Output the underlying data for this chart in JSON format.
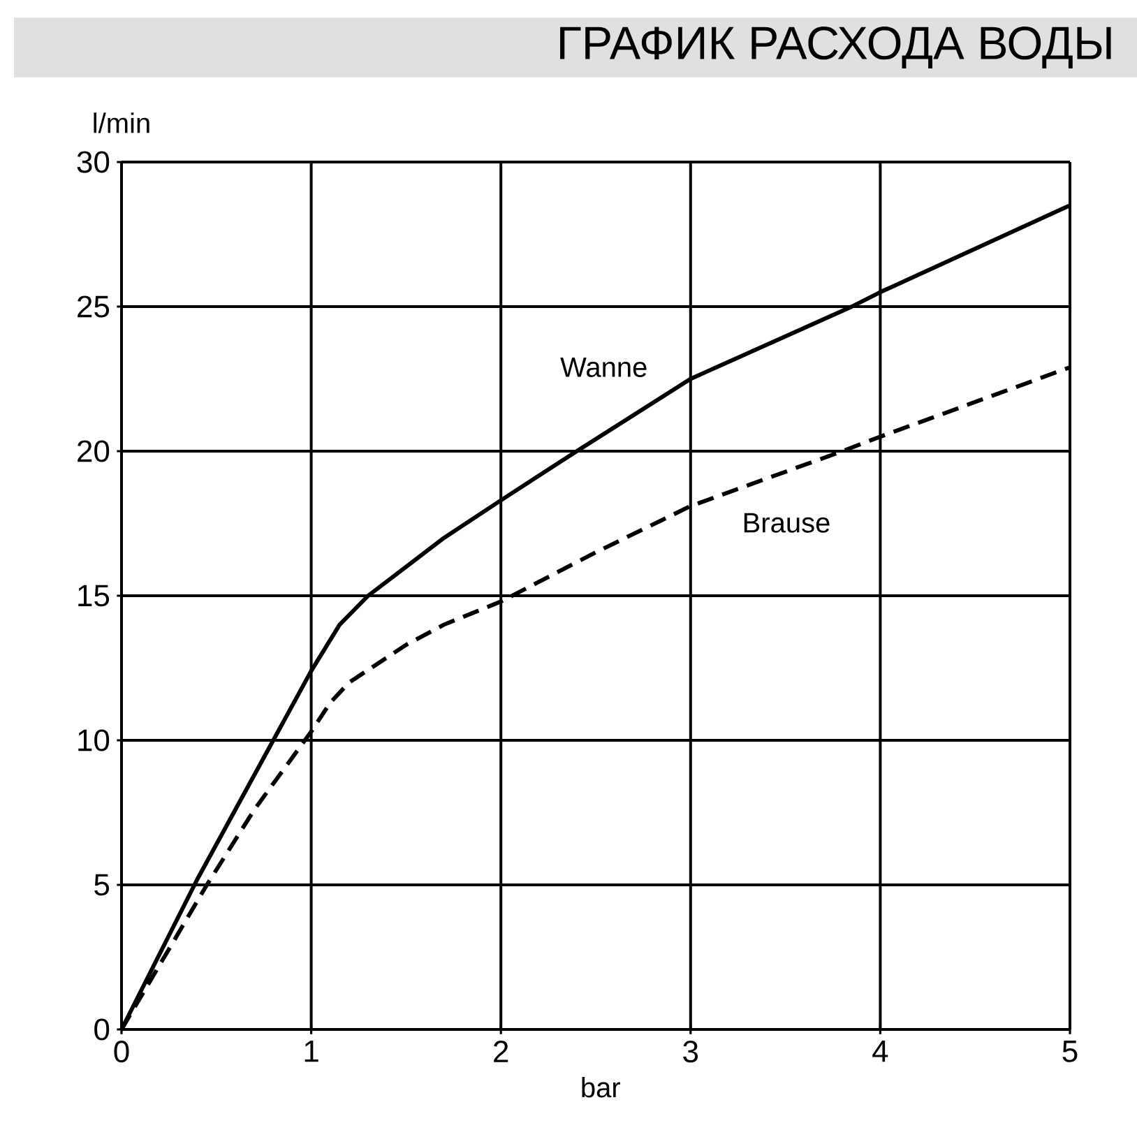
{
  "chart_data": {
    "type": "line",
    "title": "ГРАФИК РАСХОДА ВОДЫ",
    "xlabel": "bar",
    "ylabel": "l/min",
    "x": [
      0,
      0.4,
      0.8,
      1,
      1.15,
      1.3,
      1.5,
      1.7,
      2,
      2.4,
      3,
      3.85,
      4,
      5
    ],
    "series": [
      {
        "name": "Wanne",
        "color": "#000000",
        "line_style": "solid",
        "values": [
          0,
          5.2,
          10,
          12.4,
          14,
          15,
          16,
          17,
          18.3,
          20,
          22.5,
          25,
          25.5,
          28.5
        ]
      },
      {
        "name": "Brause",
        "color": "#000000",
        "line_style": "dashed",
        "x": [
          0,
          0.45,
          0.7,
          1,
          1.1,
          1.2,
          1.5,
          1.7,
          2,
          2.5,
          3,
          3.8,
          4,
          5
        ],
        "values": [
          0,
          5,
          7.6,
          10.3,
          11.3,
          12,
          13.3,
          14,
          14.8,
          16.5,
          18.1,
          20,
          20.5,
          22.9
        ]
      }
    ],
    "xlim": [
      0,
      5
    ],
    "ylim": [
      0,
      30
    ],
    "xticks": [
      0,
      1,
      2,
      3,
      4,
      5
    ],
    "yticks": [
      0,
      5,
      10,
      15,
      20,
      25,
      30
    ],
    "grid": true,
    "legend": false,
    "marker": "none"
  }
}
